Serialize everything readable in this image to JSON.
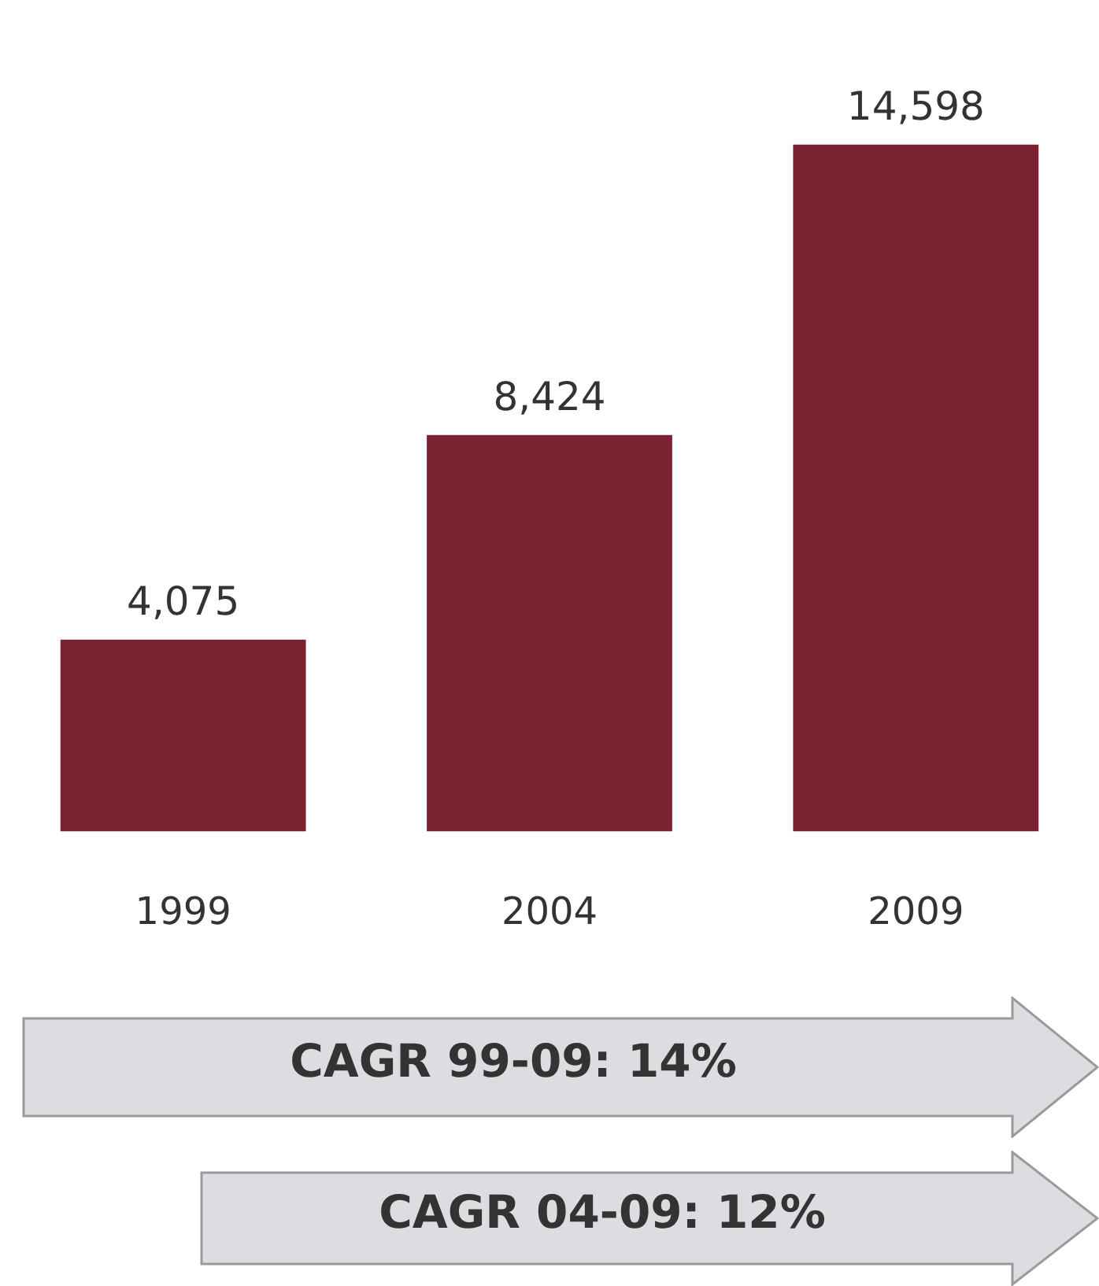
{
  "chart_data": {
    "type": "bar",
    "categories": [
      "1999",
      "2004",
      "2009"
    ],
    "values": [
      4075,
      8424,
      14598
    ],
    "color": "#7a2232",
    "value_labels": [
      "4,075",
      "8,424",
      "14,598"
    ],
    "annotations": [
      "CAGR 99-09: 14%",
      "CAGR 04-09: 12%"
    ]
  }
}
